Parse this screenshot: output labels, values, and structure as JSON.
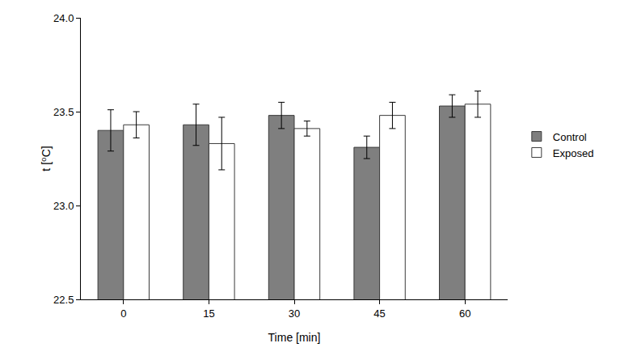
{
  "chart_data": {
    "type": "bar",
    "x_label": "Time [min]",
    "y_label": "t [⁰C]",
    "categories": [
      "0",
      "15",
      "30",
      "45",
      "60"
    ],
    "series": [
      {
        "name": "Control",
        "color": "#7f7f7f",
        "values": [
          23.4,
          23.43,
          23.48,
          23.31,
          23.53
        ],
        "error": [
          0.11,
          0.11,
          0.07,
          0.06,
          0.06
        ]
      },
      {
        "name": "Exposed",
        "color": "#ffffff",
        "values": [
          23.43,
          23.33,
          23.41,
          23.48,
          23.54
        ],
        "error": [
          0.07,
          0.14,
          0.04,
          0.07,
          0.07
        ]
      }
    ],
    "ylim": [
      22.5,
      24.0
    ],
    "yticks": [
      22.5,
      {
        "value": 23.0,
        "label": "23.0"
      },
      23.5,
      {
        "value": 24.0,
        "label": "24.0"
      }
    ],
    "grid": false,
    "legend": "right"
  }
}
